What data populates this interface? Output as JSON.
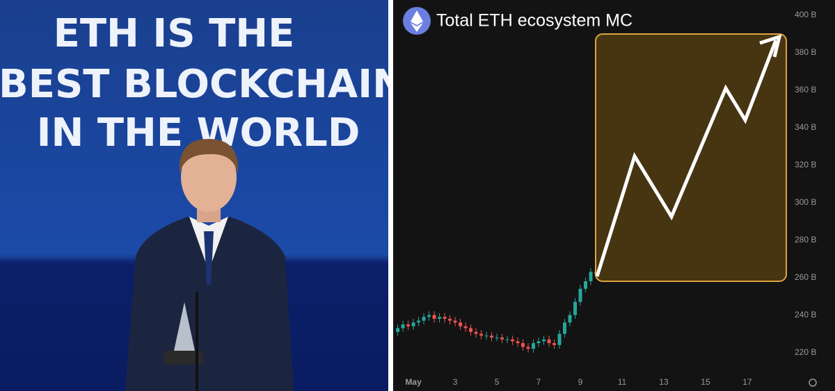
{
  "photo": {
    "banner_lines": [
      "ETH IS THE",
      "BEST BLOCKCHAIN",
      "IN THE WORLD"
    ]
  },
  "chart_data": {
    "type": "candlestick",
    "title": "Total ETH ecosystem MC",
    "x": [
      0.25,
      0.5,
      0.75,
      1,
      1.25,
      1.5,
      1.75,
      2,
      2.25,
      2.5,
      2.75,
      3,
      3.25,
      3.5,
      3.75,
      4,
      4.25,
      4.5,
      4.75,
      5,
      5.25,
      5.5,
      5.75,
      6,
      6.25,
      6.5,
      6.75,
      7,
      7.25,
      7.5,
      7.75,
      8,
      8.25,
      8.5,
      8.75,
      9,
      9.25,
      9.5,
      9.75
    ],
    "open": [
      231,
      233,
      235,
      234,
      236,
      237,
      239,
      240,
      238,
      239,
      238,
      237,
      236,
      234,
      233,
      231,
      230,
      229,
      229,
      228,
      228,
      227,
      227,
      226,
      225,
      223,
      222,
      225,
      226,
      227,
      225,
      224,
      230,
      236,
      240,
      247,
      254,
      258,
      263
    ],
    "high": [
      235,
      237,
      237,
      238,
      239,
      241,
      242,
      242,
      241,
      241,
      240,
      239,
      238,
      236,
      235,
      233,
      232,
      231,
      231,
      230,
      230,
      229,
      229,
      228,
      227,
      225,
      227,
      228,
      229,
      229,
      227,
      232,
      238,
      242,
      249,
      256,
      260,
      265,
      265
    ],
    "low": [
      229,
      231,
      232,
      232,
      234,
      235,
      237,
      236,
      236,
      236,
      235,
      234,
      232,
      231,
      229,
      228,
      227,
      227,
      226,
      226,
      225,
      225,
      224,
      223,
      221,
      220,
      220,
      223,
      224,
      223,
      222,
      222,
      228,
      234,
      238,
      245,
      252,
      256,
      260
    ],
    "close": [
      233,
      235,
      234,
      236,
      237,
      239,
      240,
      238,
      239,
      238,
      237,
      236,
      234,
      233,
      231,
      230,
      229,
      229,
      228,
      228,
      227,
      227,
      226,
      225,
      223,
      222,
      225,
      226,
      227,
      225,
      224,
      230,
      236,
      240,
      247,
      254,
      258,
      263,
      262
    ],
    "up_color": "#26a69a",
    "down_color": "#ef5350",
    "xlim": [
      0.03,
      19.87
    ],
    "xticks": [
      {
        "value": 1,
        "label": "May"
      },
      3,
      5,
      7,
      9,
      11,
      13,
      15,
      17
    ],
    "ylim": [
      208,
      408
    ],
    "yticks": [
      {
        "value": 220,
        "label": "220 B"
      },
      {
        "value": 240,
        "label": "240 B"
      },
      {
        "value": 260,
        "label": "260 B"
      },
      {
        "value": 280,
        "label": "280 B"
      },
      {
        "value": 300,
        "label": "300 B"
      },
      {
        "value": 320,
        "label": "320 B"
      },
      {
        "value": 340,
        "label": "340 B"
      },
      {
        "value": 360,
        "label": "360 B"
      },
      {
        "value": 380,
        "label": "380 B"
      },
      {
        "value": 400,
        "label": "400 B"
      }
    ]
  }
}
